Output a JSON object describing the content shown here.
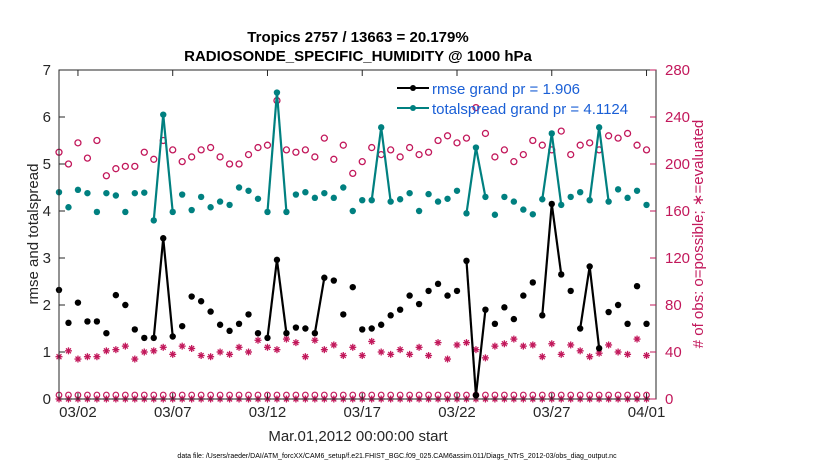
{
  "chart_data": {
    "type": "line",
    "title_line1": "Tropics 2757 / 13663 = 20.179%",
    "title_line2": "RADIOSONDE_SPECIFIC_HUMIDITY @ 1000 hPa",
    "xlabel": "Mar.01,2012 00:00:00 start",
    "ylabel_left": "rmse and totalspread",
    "ylabel_right": "# of obs: o=possible; ∗=evaluated",
    "x_range_days": [
      0,
      31.5
    ],
    "ylim_left": [
      0,
      7
    ],
    "ylim_right": [
      0,
      280
    ],
    "x_ticks": [
      {
        "day": 1,
        "label": "03/02"
      },
      {
        "day": 6,
        "label": "03/07"
      },
      {
        "day": 11,
        "label": "03/12"
      },
      {
        "day": 16,
        "label": "03/17"
      },
      {
        "day": 21,
        "label": "03/22"
      },
      {
        "day": 26,
        "label": "03/27"
      },
      {
        "day": 31,
        "label": "04/01"
      }
    ],
    "y_ticks_left": [
      "0",
      "1",
      "2",
      "3",
      "4",
      "5",
      "6",
      "7"
    ],
    "y_ticks_right": [
      "0",
      "40",
      "80",
      "120",
      "160",
      "200",
      "240",
      "280"
    ],
    "x": [
      0,
      0.5,
      1,
      1.5,
      2,
      2.5,
      3,
      3.5,
      4,
      4.5,
      5,
      5.5,
      6,
      6.5,
      7,
      7.5,
      8,
      8.5,
      9,
      9.5,
      10,
      10.5,
      11,
      11.5,
      12,
      12.5,
      13,
      13.5,
      14,
      14.5,
      15,
      15.5,
      16,
      16.5,
      17,
      17.5,
      18,
      18.5,
      19,
      19.5,
      20,
      20.5,
      21,
      21.5,
      22,
      22.5,
      23,
      23.5,
      24,
      24.5,
      25,
      25.5,
      26,
      26.5,
      27,
      27.5,
      28,
      28.5,
      29,
      29.5,
      30,
      30.5,
      31
    ],
    "series": [
      {
        "name": "rmse",
        "legend": "rmse grand pr = 1.906",
        "color": "#000000",
        "values": [
          2.32,
          1.62,
          2.05,
          1.65,
          1.65,
          1.4,
          2.21,
          2.0,
          1.48,
          1.3,
          1.3,
          3.42,
          1.33,
          1.55,
          2.18,
          2.08,
          1.86,
          1.58,
          1.45,
          1.6,
          1.8,
          1.4,
          1.3,
          2.96,
          1.4,
          1.52,
          1.5,
          1.4,
          2.58,
          2.52,
          1.8,
          2.38,
          1.48,
          1.5,
          1.58,
          1.78,
          1.9,
          2.2,
          2.02,
          2.3,
          2.45,
          2.2,
          2.3,
          2.94,
          0.08,
          1.9,
          1.6,
          1.95,
          1.7,
          2.2,
          2.48,
          1.78,
          4.15,
          2.65,
          2.3,
          1.5,
          2.82,
          1.08,
          1.85,
          2.0,
          1.6,
          2.4,
          1.6
        ]
      },
      {
        "name": "totalspread",
        "legend": "totalspread grand pr = 4.1124",
        "color": "#008080",
        "values": [
          4.4,
          4.08,
          4.45,
          4.38,
          3.98,
          4.38,
          4.33,
          3.98,
          4.38,
          4.39,
          3.8,
          6.05,
          3.98,
          4.35,
          4.02,
          4.3,
          4.08,
          4.2,
          4.13,
          4.5,
          4.43,
          4.26,
          3.98,
          6.52,
          3.98,
          4.35,
          4.4,
          4.28,
          4.38,
          4.28,
          4.5,
          4.0,
          4.23,
          4.23,
          5.78,
          4.2,
          4.25,
          4.38,
          4.0,
          4.36,
          4.2,
          4.26,
          4.43,
          3.95,
          5.35,
          4.3,
          3.92,
          4.3,
          4.2,
          4.03,
          3.93,
          4.25,
          5.65,
          4.13,
          4.3,
          4.4,
          4.23,
          5.78,
          4.2,
          4.46,
          4.28,
          4.43,
          4.13
        ]
      }
    ],
    "obs_possible": [
      210,
      200,
      218,
      205,
      220,
      190,
      196,
      198,
      198,
      210,
      204,
      220,
      212,
      202,
      206,
      212,
      214,
      206,
      200,
      200,
      208,
      214,
      216,
      254,
      212,
      210,
      212,
      206,
      222,
      204,
      216,
      192,
      202,
      214,
      208,
      212,
      206,
      214,
      208,
      210,
      220,
      224,
      218,
      222,
      248,
      226,
      206,
      212,
      202,
      208,
      220,
      216,
      212,
      228,
      208,
      216,
      218,
      212,
      224,
      222,
      226,
      216,
      212
    ],
    "obs_evaluated": [
      36,
      41,
      34,
      36,
      36,
      41,
      42,
      45,
      34,
      40,
      41,
      44,
      38,
      45,
      43,
      37,
      36,
      40,
      38,
      44,
      40,
      50,
      44,
      42,
      51,
      48,
      36,
      50,
      42,
      46,
      37,
      44,
      37,
      49,
      40,
      38,
      42,
      38,
      44,
      37,
      48,
      34,
      46,
      48,
      42,
      35,
      45,
      47,
      51,
      45,
      46,
      36,
      47,
      38,
      46,
      41,
      36,
      39,
      46,
      40,
      38,
      51,
      37
    ],
    "obs_baseline": [
      0,
      0,
      0,
      0,
      0,
      0,
      0,
      0,
      0,
      0,
      0,
      0,
      0,
      0,
      0,
      0,
      0,
      0,
      0,
      0,
      0,
      0,
      0,
      0,
      0,
      0,
      0,
      0,
      0,
      0,
      0,
      0,
      0,
      0,
      0,
      0,
      0,
      0,
      0,
      0,
      0,
      0,
      0,
      0,
      0,
      0,
      0,
      0,
      0,
      0,
      0,
      0,
      0,
      0,
      0,
      0,
      0,
      0,
      0,
      0,
      0,
      0,
      0
    ]
  },
  "footer": "data file: /Users/raeder/DAI/ATM_forcXX/CAM6_setup/f.e21.FHIST_BGC.f09_025.CAM6assim.011/Diags_NTrS_2012-03/obs_diag_output.nc",
  "colors": {
    "rmse": "#000000",
    "spread": "#008080",
    "obs": "#c2185b",
    "axis": "#262626"
  }
}
